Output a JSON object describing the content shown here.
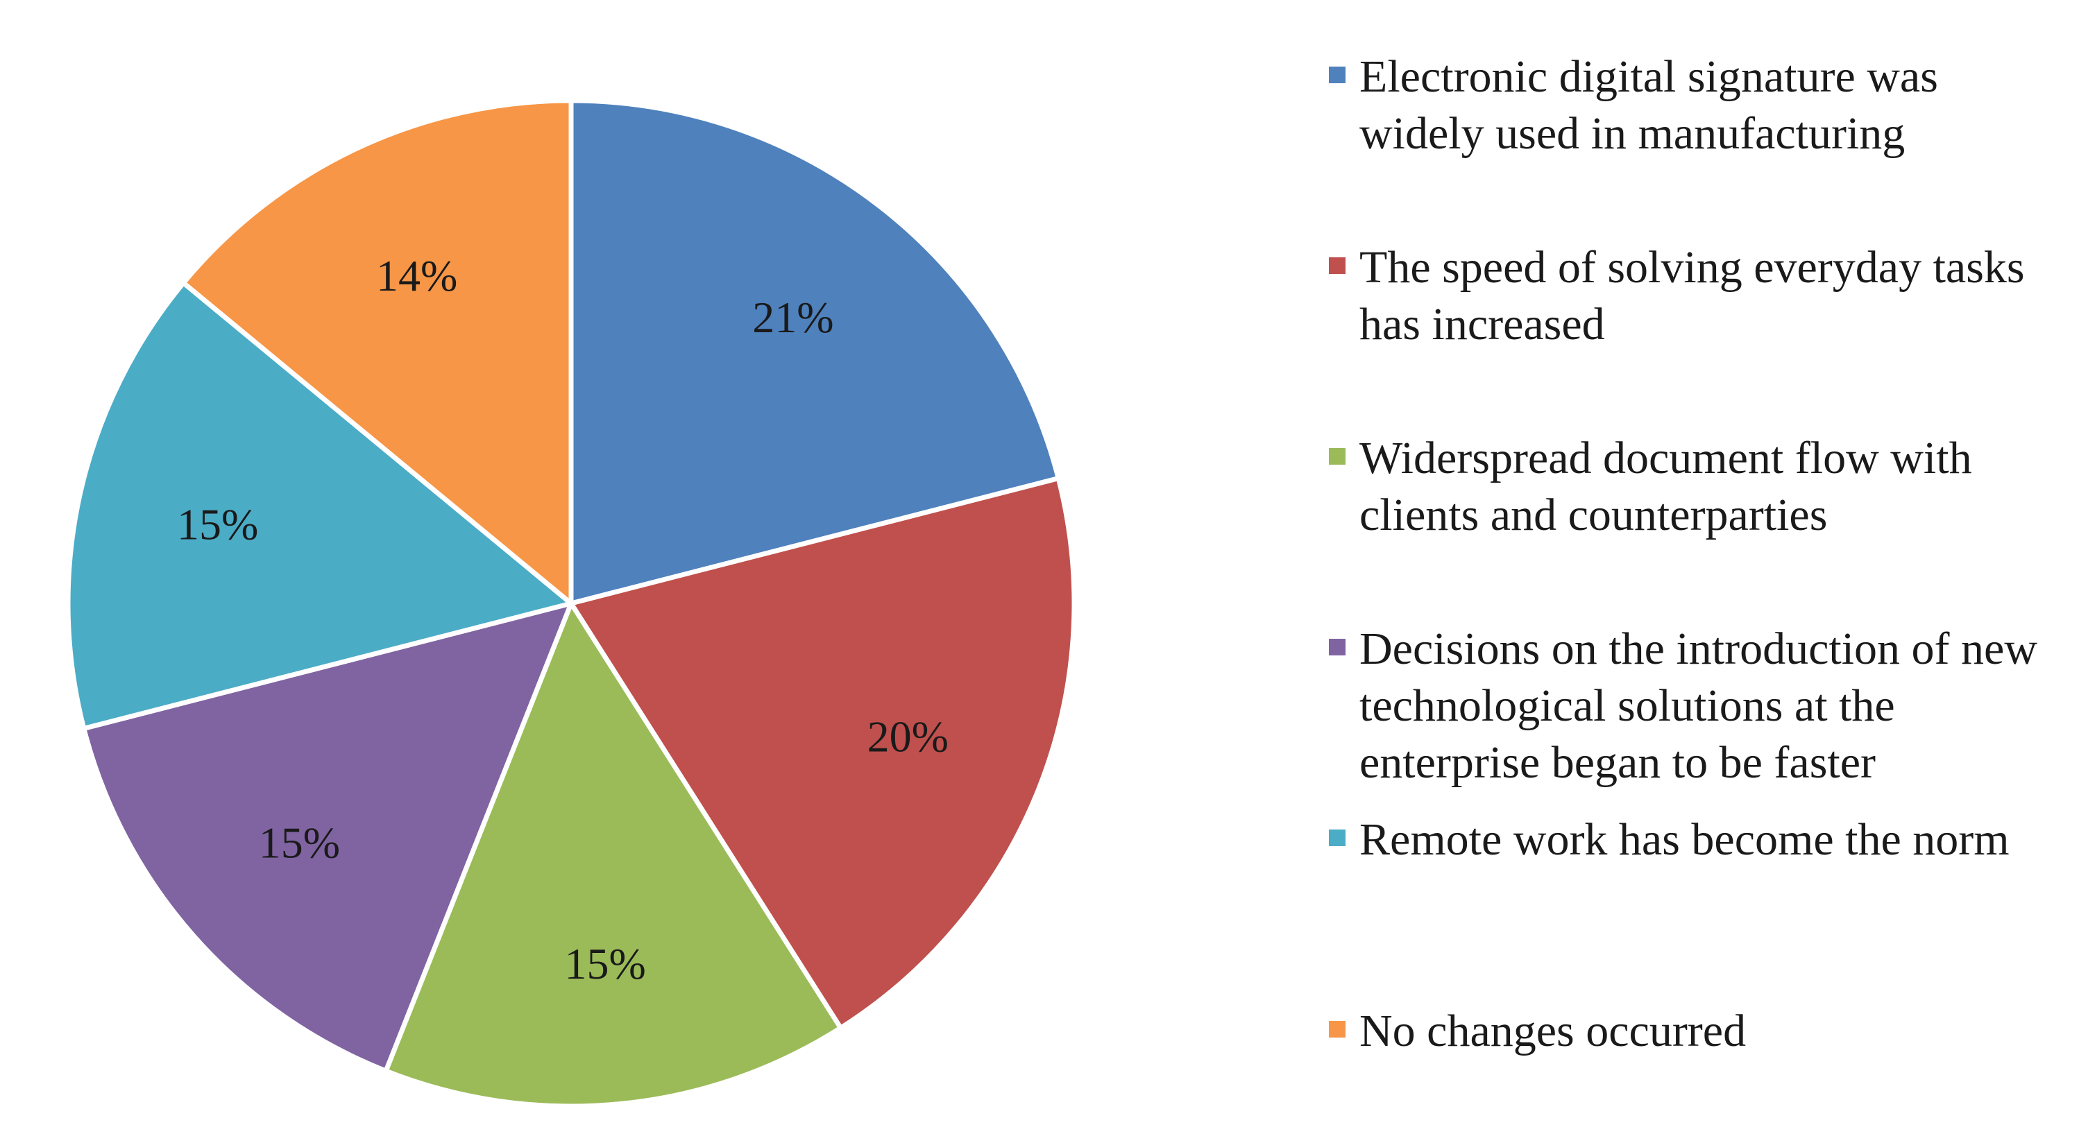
{
  "chart_data": {
    "type": "pie",
    "title": "",
    "legend_position": "right",
    "slices": [
      {
        "label": "Electronic digital signature was widely used in manufacturing",
        "value": 21,
        "display": "21%",
        "color": "#4F81BD"
      },
      {
        "label": "The speed of solving everyday tasks has increased",
        "value": 20,
        "display": "20%",
        "color": "#C0504D"
      },
      {
        "label": "Widerspread document flow with clients and counterparties",
        "value": 15,
        "display": "15%",
        "color": "#9BBB59"
      },
      {
        "label": "Decisions on the introduction of new technological solutions at the enterprise began to be faster",
        "value": 15,
        "display": "15%",
        "color": "#8064A2"
      },
      {
        "label": "Remote work has become the norm",
        "value": 15,
        "display": "15%",
        "color": "#4BACC6"
      },
      {
        "label": "No changes occurred",
        "value": 14,
        "display": "14%",
        "color": "#F79646"
      }
    ]
  }
}
